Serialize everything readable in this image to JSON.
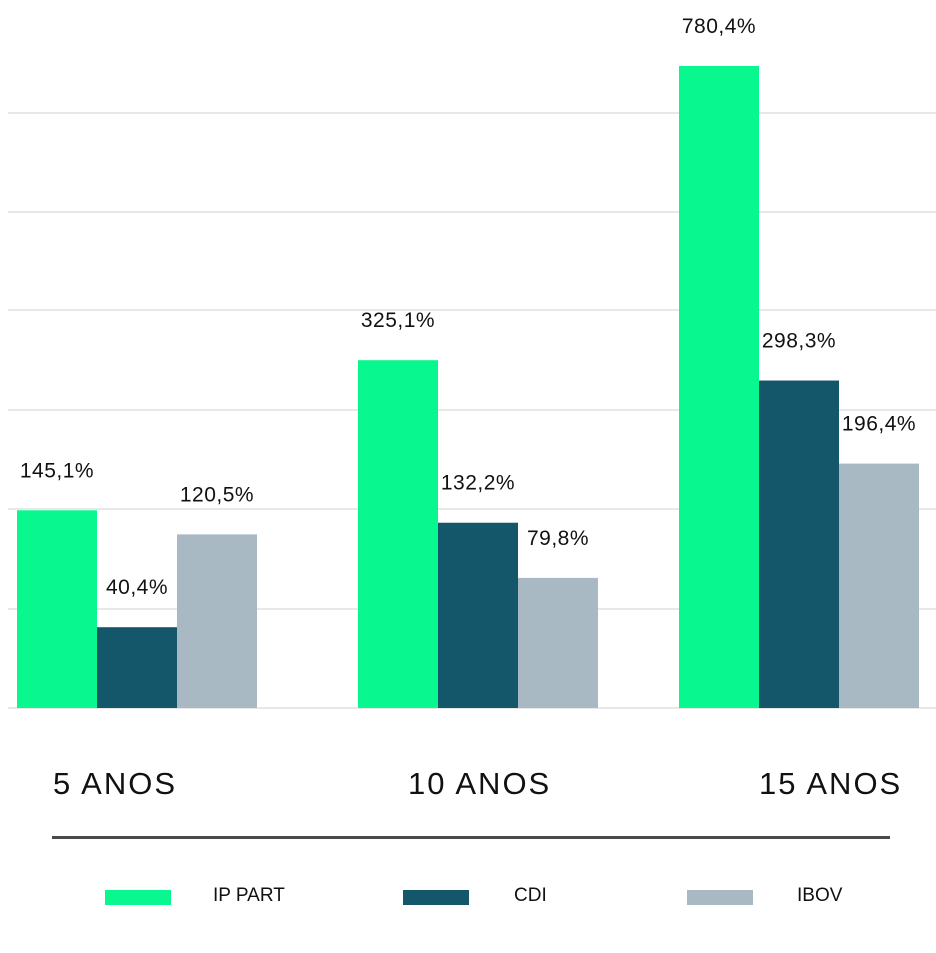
{
  "chart_data": {
    "type": "bar",
    "title": "",
    "xlabel": "",
    "ylabel": "",
    "categories": [
      "5 ANOS",
      "10 ANOS",
      "15 ANOS"
    ],
    "series": [
      {
        "name": "IP PART",
        "color": "#08f78f",
        "values": [
          145.1,
          325.1,
          780.4
        ],
        "labels": [
          "145,1%",
          "325,1%",
          "780,4%"
        ]
      },
      {
        "name": "CDI",
        "color": "#14566a",
        "values": [
          40.4,
          132.2,
          298.3
        ],
        "labels": [
          "40,4%",
          "132,2%",
          "298,3%"
        ]
      },
      {
        "name": "IBOV",
        "color": "#a9b9c3",
        "values": [
          120.5,
          79.8,
          196.4
        ],
        "labels": [
          "120,5%",
          "79,8%",
          "196,4%"
        ]
      }
    ],
    "grid": true,
    "legend_position": "bottom"
  }
}
